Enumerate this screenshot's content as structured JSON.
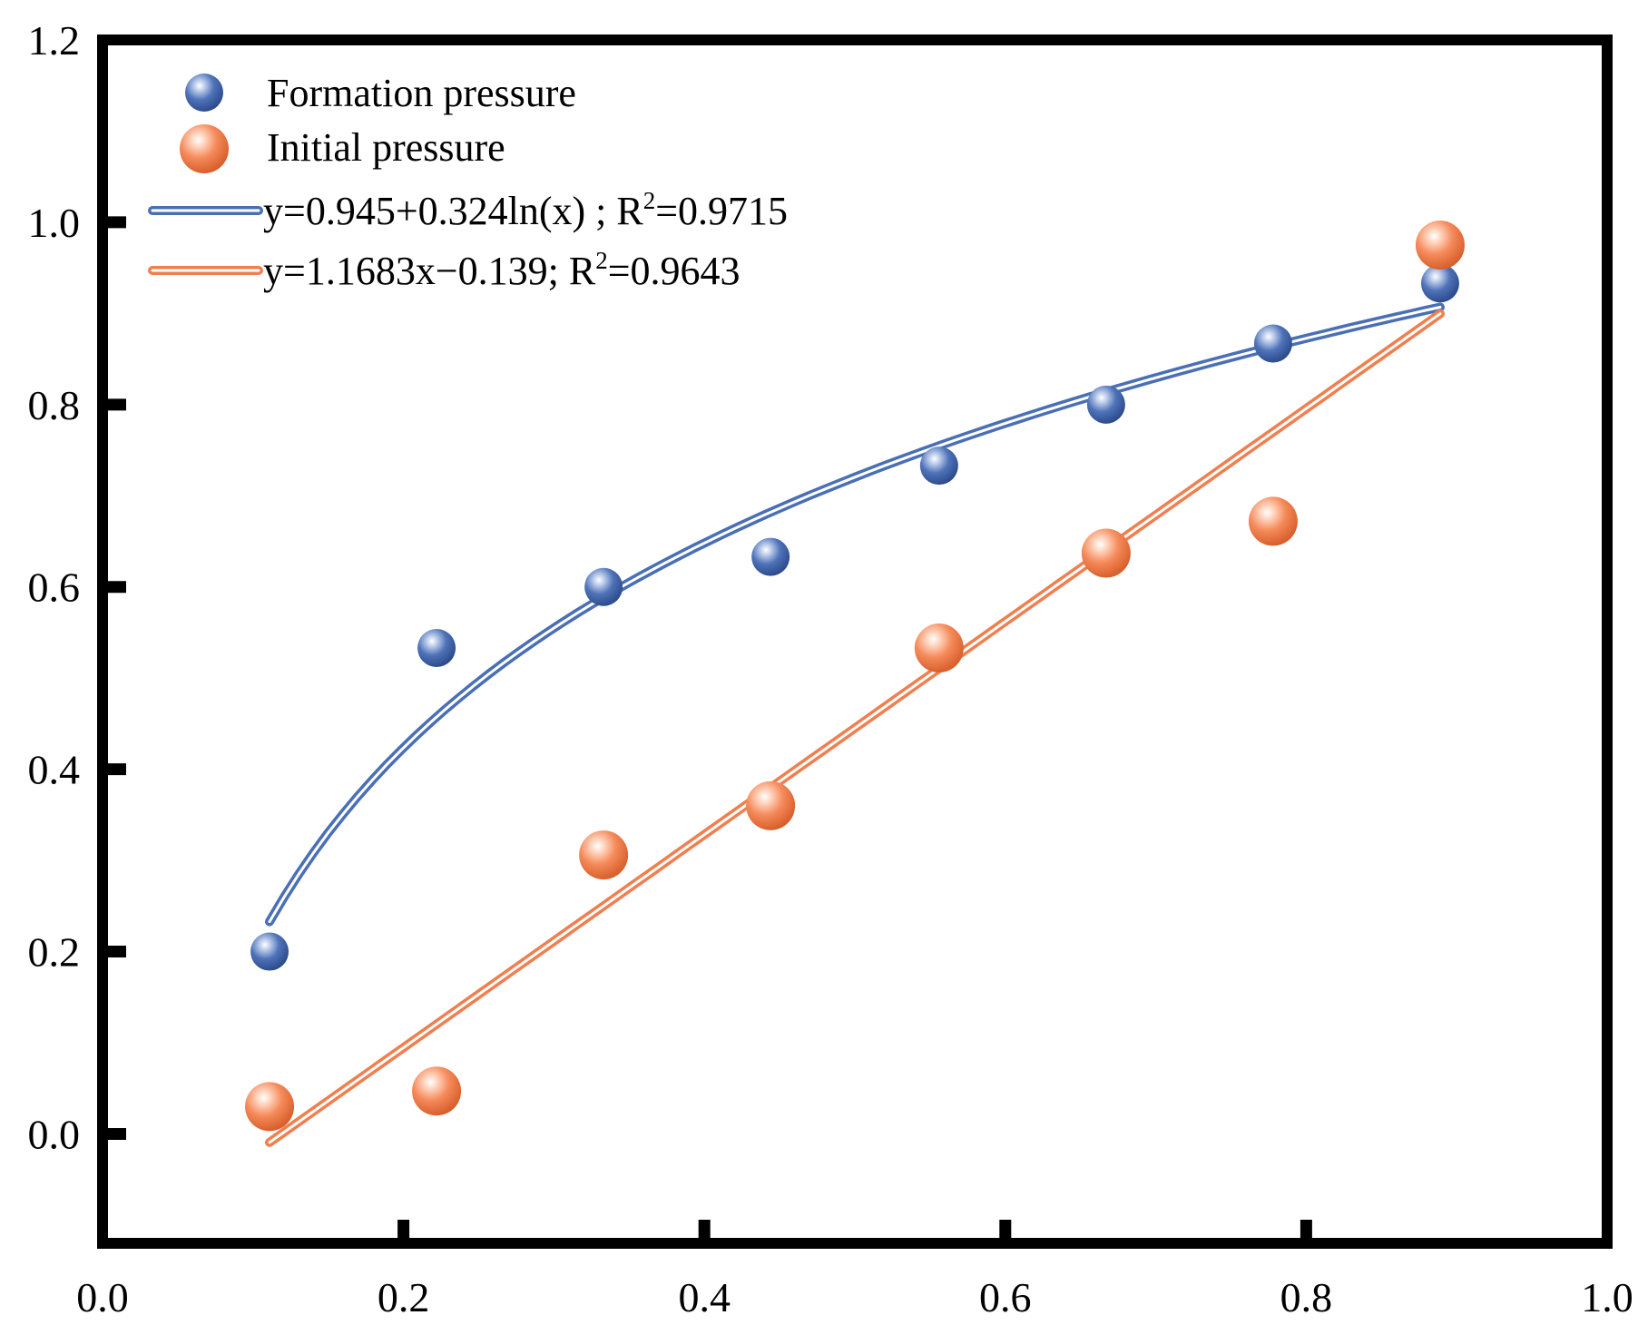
{
  "chart_data": {
    "type": "scatter",
    "title": "",
    "xlabel": "",
    "ylabel": "",
    "xlim": [
      0.0,
      1.0
    ],
    "ylim": [
      -0.12,
      1.2
    ],
    "x_ticks": [
      0.0,
      0.2,
      0.4,
      0.6,
      0.8,
      1.0
    ],
    "x_tick_labels": [
      "0.0",
      "0.2",
      "0.4",
      "0.6",
      "0.8",
      "1.0"
    ],
    "y_ticks": [
      0.0,
      0.2,
      0.4,
      0.6,
      0.8,
      1.0,
      1.2
    ],
    "y_tick_labels": [
      "0.0",
      "0.2",
      "0.4",
      "0.6",
      "0.8",
      "1.0",
      "1.2"
    ],
    "grid": false,
    "legend_position": "top-left",
    "series": [
      {
        "name": "Formation pressure",
        "kind": "scatter",
        "color": "#4a6fb5",
        "x": [
          0.111,
          0.222,
          0.333,
          0.444,
          0.556,
          0.667,
          0.778,
          0.889
        ],
        "y": [
          0.2,
          0.533,
          0.6,
          0.633,
          0.733,
          0.8,
          0.867,
          0.933
        ]
      },
      {
        "name": "Initial pressure",
        "kind": "scatter",
        "color": "#f07f4f",
        "x": [
          0.111,
          0.222,
          0.333,
          0.444,
          0.556,
          0.667,
          0.778,
          0.889
        ],
        "y": [
          0.03,
          0.047,
          0.306,
          0.36,
          0.533,
          0.637,
          0.672,
          0.975
        ]
      }
    ],
    "fits": [
      {
        "name": "log-fit",
        "color": "#4a6fb5",
        "equation": "y=0.945+0.324ln(x) ; R",
        "r2_sup": "2",
        "r2_value": "=0.9715",
        "model": "log",
        "a": 0.945,
        "b": 0.324,
        "x_range": [
          0.111,
          0.889
        ]
      },
      {
        "name": "linear-fit",
        "color": "#f07f4f",
        "equation": "y=1.1683x−0.139; R",
        "r2_sup": "2",
        "r2_value": "=0.9643",
        "model": "linear",
        "slope": 1.1683,
        "intercept": -0.139,
        "x_range": [
          0.111,
          0.889
        ]
      }
    ]
  }
}
